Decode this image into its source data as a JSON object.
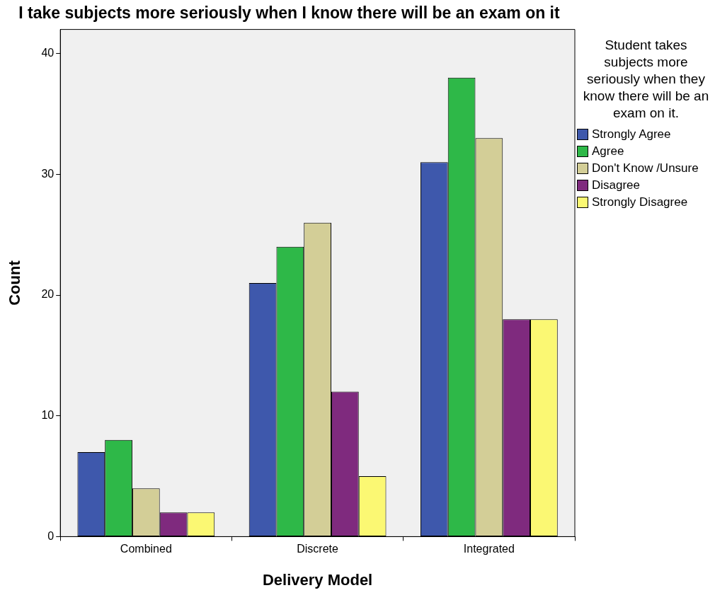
{
  "chart_data": {
    "type": "bar",
    "title": "I take subjects more seriously when I know there will be an exam on it",
    "xlabel": "Delivery Model",
    "ylabel": "Count",
    "legend_title": "Student takes subjects more seriously when they know there will be an exam on it.",
    "categories": [
      "Combined",
      "Discrete",
      "Integrated"
    ],
    "series": [
      {
        "name": "Strongly Agree",
        "color": "#3e58ac",
        "values": [
          7,
          21,
          31
        ]
      },
      {
        "name": "Agree",
        "color": "#2eb848",
        "values": [
          8,
          24,
          38
        ]
      },
      {
        "name": "Don't Know /Unsure",
        "color": "#d3ce97",
        "values": [
          4,
          26,
          33
        ]
      },
      {
        "name": "Disagree",
        "color": "#7f2a7e",
        "values": [
          2,
          12,
          18
        ]
      },
      {
        "name": "Strongly Disagree",
        "color": "#fbf873",
        "values": [
          2,
          5,
          18
        ]
      }
    ],
    "ylim": [
      0,
      42
    ],
    "yticks": [
      0,
      10,
      20,
      30,
      40
    ],
    "grid": false,
    "legend": "right"
  }
}
